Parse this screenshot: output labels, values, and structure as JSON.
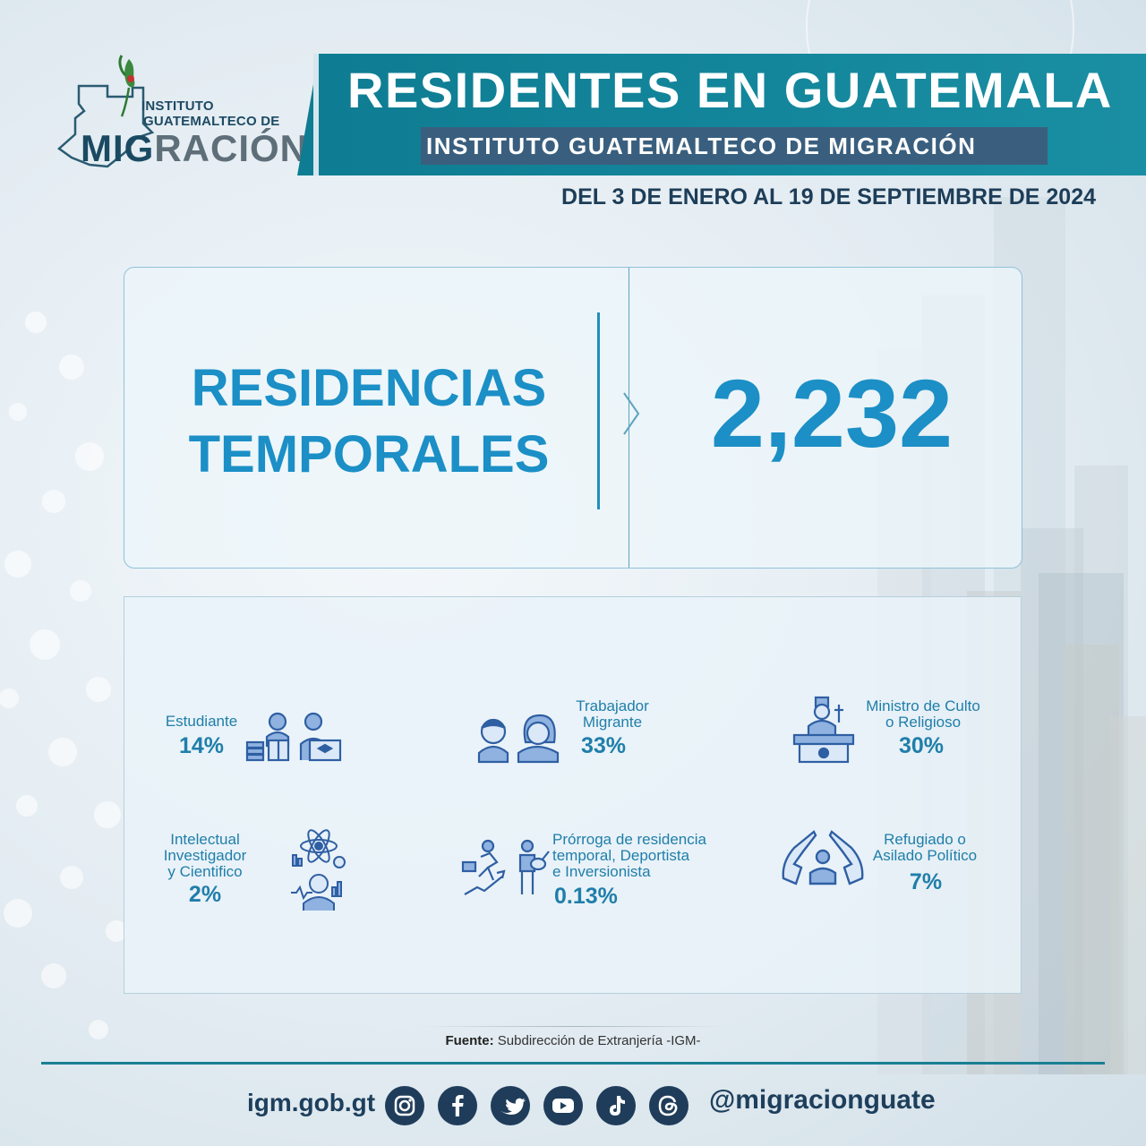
{
  "header": {
    "logo": {
      "line1": "INSTITUTO",
      "line2": "GUATEMALTECO DE",
      "main_a": "MIG",
      "main_b": "RACIÓN"
    },
    "title": "RESIDENTES EN GUATEMALA",
    "subtitle": "INSTITUTO GUATEMALTECO DE MIGRACIÓN",
    "date_range": "DEL 3 DE ENERO AL 19 DE SEPTIEMBRE DE 2024"
  },
  "stat": {
    "label_line1": "RESIDENCIAS",
    "label_line2": "TEMPORALES",
    "value": "2,232"
  },
  "categories": [
    {
      "label_lines": [
        "Estudiante"
      ],
      "value": "14%",
      "icon": "students-icon"
    },
    {
      "label_lines": [
        "Trabajador",
        "Migrante"
      ],
      "value": "33%",
      "icon": "workers-icon"
    },
    {
      "label_lines": [
        "Ministro de Culto",
        "o Religioso"
      ],
      "value": "30%",
      "icon": "minister-icon"
    },
    {
      "label_lines": [
        "Intelectual",
        "Investigador",
        "y Cientifico"
      ],
      "value": "2%",
      "icon": "scientist-icon"
    },
    {
      "label_lines": [
        "Prórroga de residencia",
        "temporal, Deportista",
        "e Inversionista"
      ],
      "value": "0.13%",
      "icon": "athlete-investor-icon"
    },
    {
      "label_lines": [
        "Refugiado o",
        "Asilado Político"
      ],
      "value": "7%",
      "icon": "refugee-icon"
    }
  ],
  "footer": {
    "source_label": "Fuente:",
    "source_text": "Subdirección de Extranjería -IGM-",
    "website": "igm.gob.gt",
    "social_icons": [
      "instagram-icon",
      "facebook-icon",
      "twitter-icon",
      "youtube-icon",
      "tiktok-icon",
      "threads-icon"
    ],
    "handle": "@migracionguate"
  },
  "colors": {
    "title_bar": "#0e7c92",
    "subtitle_box": "#3a5f7e",
    "accent_blue": "#1b8fc6",
    "dark_navy": "#1d3d58"
  }
}
